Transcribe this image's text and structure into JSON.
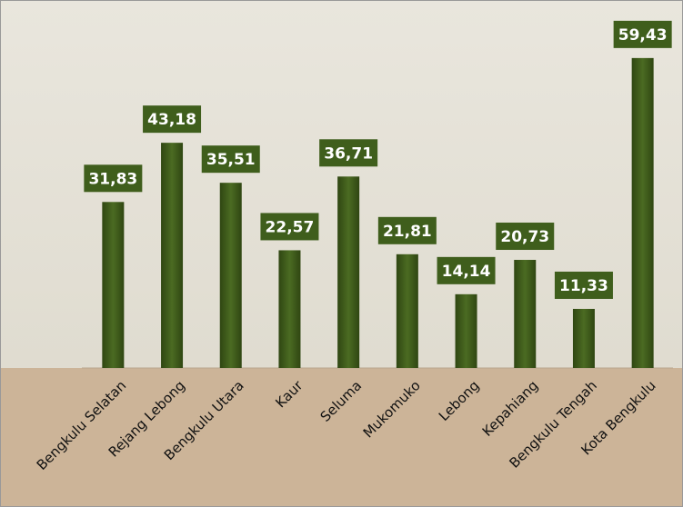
{
  "chart_data": {
    "type": "bar",
    "categories": [
      "Bengkulu Selatan",
      "Rejang Lebong",
      "Bengkulu Utara",
      "Kaur",
      "Seluma",
      "Mukomuko",
      "Lebong",
      "Kepahiang",
      "Bengkulu Tengah",
      "Kota Bengkulu"
    ],
    "values": [
      31.83,
      43.18,
      35.51,
      22.57,
      36.71,
      21.81,
      14.14,
      20.73,
      11.33,
      59.43
    ],
    "value_labels": [
      "31,83",
      "43,18",
      "35,51",
      "22,57",
      "36,71",
      "21,81",
      "14,14",
      "20,73",
      "11,33",
      "59,43"
    ],
    "color": "#3d5a1a",
    "ylim": [
      0,
      65
    ]
  }
}
